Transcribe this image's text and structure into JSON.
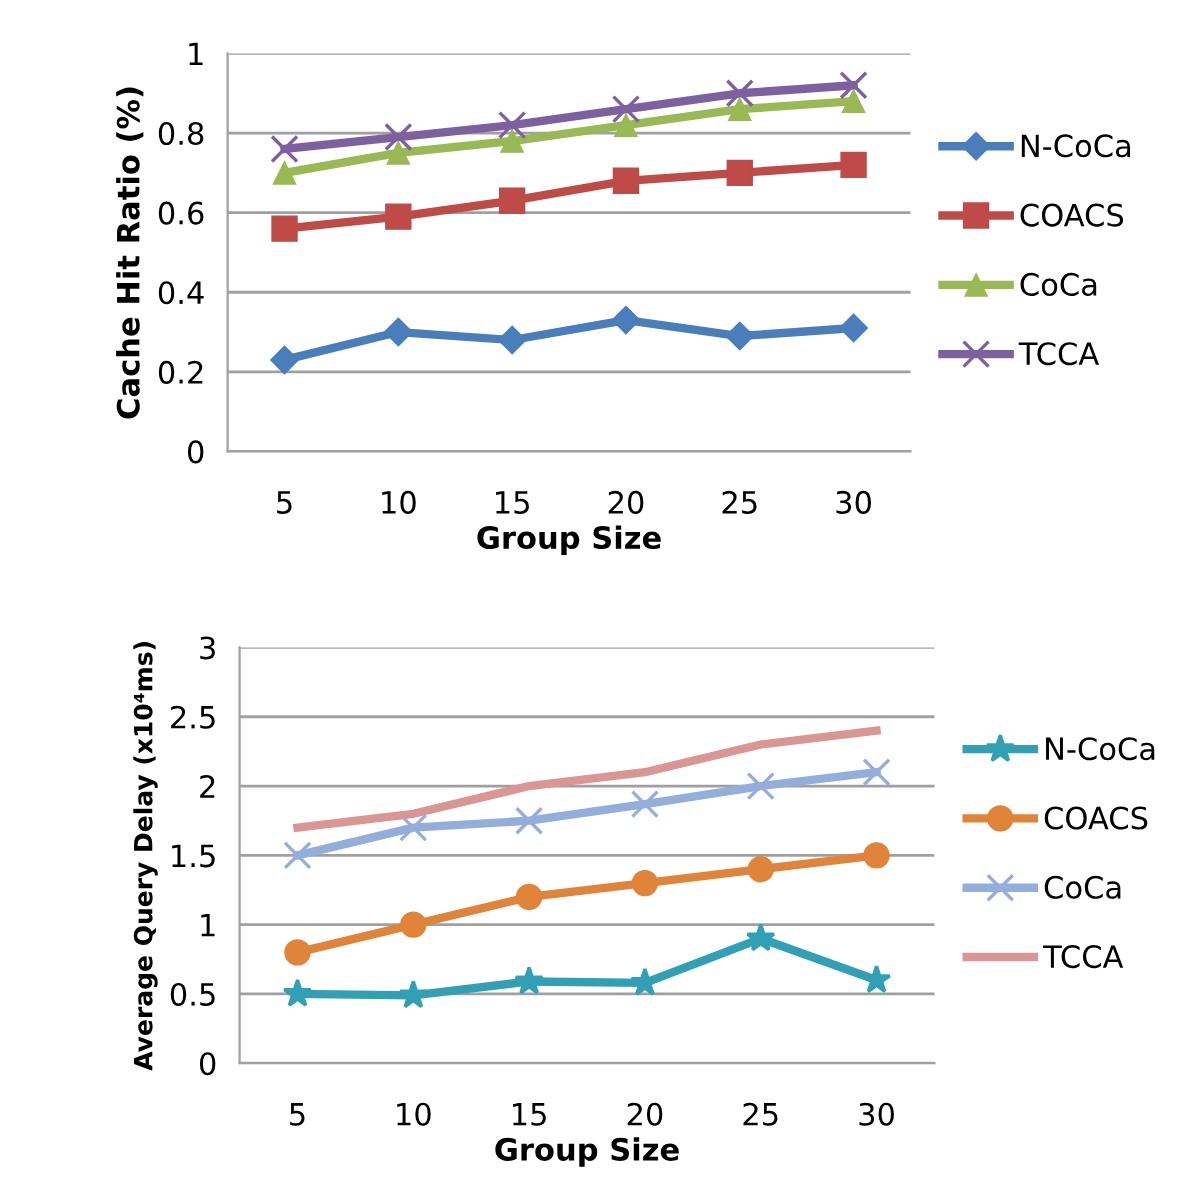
{
  "chart_data": [
    {
      "type": "line",
      "xlabel": "Group Size",
      "ylabel": "Cache Hit Ratio (%)",
      "categories": [
        "5",
        "10",
        "15",
        "20",
        "25",
        "30"
      ],
      "ylim": [
        0,
        1
      ],
      "yticks": [
        0,
        0.2,
        0.4,
        0.6,
        0.8,
        1
      ],
      "grid": "y",
      "legend": "right",
      "series": [
        {
          "name": "N-CoCa",
          "color": "#4a7ebb",
          "marker": "diamond",
          "values": [
            0.23,
            0.3,
            0.28,
            0.33,
            0.29,
            0.31
          ]
        },
        {
          "name": "COACS",
          "color": "#be4b48",
          "marker": "square",
          "values": [
            0.56,
            0.59,
            0.63,
            0.68,
            0.7,
            0.72
          ]
        },
        {
          "name": "CoCa",
          "color": "#98b954",
          "marker": "triangle",
          "values": [
            0.7,
            0.75,
            0.78,
            0.82,
            0.86,
            0.88
          ]
        },
        {
          "name": "TCCA",
          "color": "#7d60a0",
          "marker": "cross",
          "values": [
            0.76,
            0.79,
            0.82,
            0.86,
            0.9,
            0.92
          ]
        }
      ]
    },
    {
      "type": "line",
      "xlabel": "Group Size",
      "ylabel": "Average Query Delay (x10⁴ms)",
      "categories": [
        "5",
        "10",
        "15",
        "20",
        "25",
        "30"
      ],
      "ylim": [
        0,
        3
      ],
      "yticks": [
        0,
        0.5,
        1,
        1.5,
        2,
        2.5,
        3
      ],
      "grid": "y",
      "legend": "right",
      "series": [
        {
          "name": "N-CoCa",
          "color": "#31a0b5",
          "marker": "star",
          "values": [
            0.5,
            0.49,
            0.59,
            0.58,
            0.9,
            0.6
          ]
        },
        {
          "name": "COACS",
          "color": "#e0843a",
          "marker": "circle",
          "values": [
            0.8,
            1.0,
            1.2,
            1.3,
            1.4,
            1.5
          ]
        },
        {
          "name": "CoCa",
          "color": "#94aedc",
          "marker": "cross",
          "values": [
            1.5,
            1.7,
            1.75,
            1.87,
            2.0,
            2.1
          ]
        },
        {
          "name": "TCCA",
          "color": "#d99694",
          "marker": "none",
          "values": [
            1.7,
            1.8,
            2.0,
            2.1,
            2.3,
            2.4
          ]
        }
      ]
    }
  ]
}
